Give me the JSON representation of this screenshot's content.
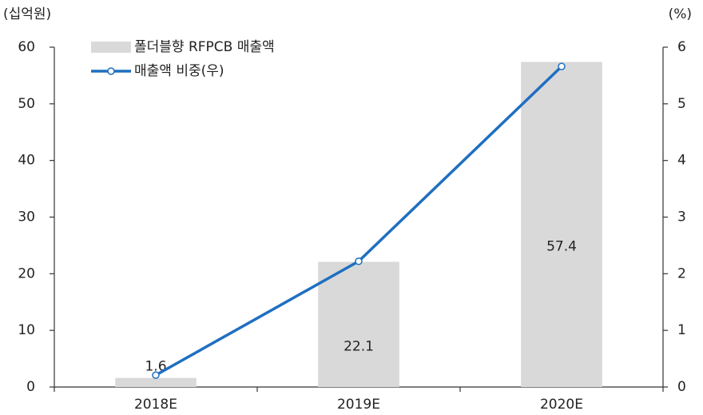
{
  "chart_data": {
    "type": "bar-line",
    "y_label": "(십억원)",
    "y2_label": "(%)",
    "categories": [
      "2018E",
      "2019E",
      "2020E"
    ],
    "series": [
      {
        "name": "폴더블향 RFPCB 매출액",
        "type": "bar",
        "color": "#d9d9d9",
        "values": [
          1.6,
          22.1,
          57.4
        ]
      },
      {
        "name": "매출액 비중(우)",
        "type": "line",
        "axis": "y2",
        "color": "#1f6fc1",
        "values": [
          0.21,
          2.22,
          5.66
        ]
      }
    ],
    "ylim": [
      0,
      60
    ],
    "yticks": [
      0,
      10,
      20,
      30,
      40,
      50,
      60
    ],
    "y2lim": [
      0,
      6
    ],
    "y2ticks": [
      0,
      1,
      2,
      3,
      4,
      5,
      6
    ]
  }
}
